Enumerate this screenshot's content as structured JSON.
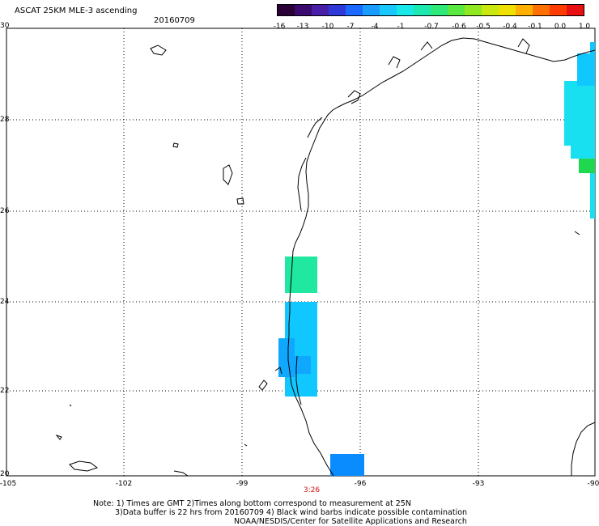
{
  "header": {
    "title": "ASCAT 25KM MLE-3 ascending",
    "date": "20160709"
  },
  "colorbar": {
    "colors": [
      "#2a0036",
      "#3b0a6e",
      "#4a1fa8",
      "#2e3ad8",
      "#1a6aff",
      "#1a9cff",
      "#18c8ff",
      "#19e8e8",
      "#1de8b0",
      "#2ee878",
      "#58e840",
      "#90e820",
      "#c8e810",
      "#f0e000",
      "#ffb000",
      "#ff7000",
      "#ff3c00",
      "#e81010"
    ],
    "tick_labels": [
      "-16",
      "-13",
      "-10",
      "-7",
      "-4",
      "-1",
      "-0.7",
      "-0.6",
      "-0.5",
      "-0.4",
      "-0.1",
      "0.0",
      "1.0"
    ]
  },
  "axes": {
    "y_labels": [
      "30",
      "28",
      "26",
      "24",
      "22",
      "20"
    ],
    "x_labels": [
      "-105",
      "-102",
      "-99",
      "-96",
      "-93",
      "-90"
    ]
  },
  "time_label": "3:26",
  "notes": {
    "line1": "Note: 1) Times are GMT 2)Times along bottom correspond to measurement at 25N",
    "line2": "3)Data buffer is 22 hrs from 20160709 4) Black wind barbs indicate possible contamination",
    "line3": "NOAA/NESDIS/Center for Satellite Applications and Research"
  },
  "swath_colors": {
    "teal_green": "#20e8a0",
    "light_blue": "#10c8ff",
    "mid_blue": "#10a8ff",
    "deep_blue": "#0a8cff",
    "cyan": "#18e0f0",
    "green": "#20d850"
  }
}
